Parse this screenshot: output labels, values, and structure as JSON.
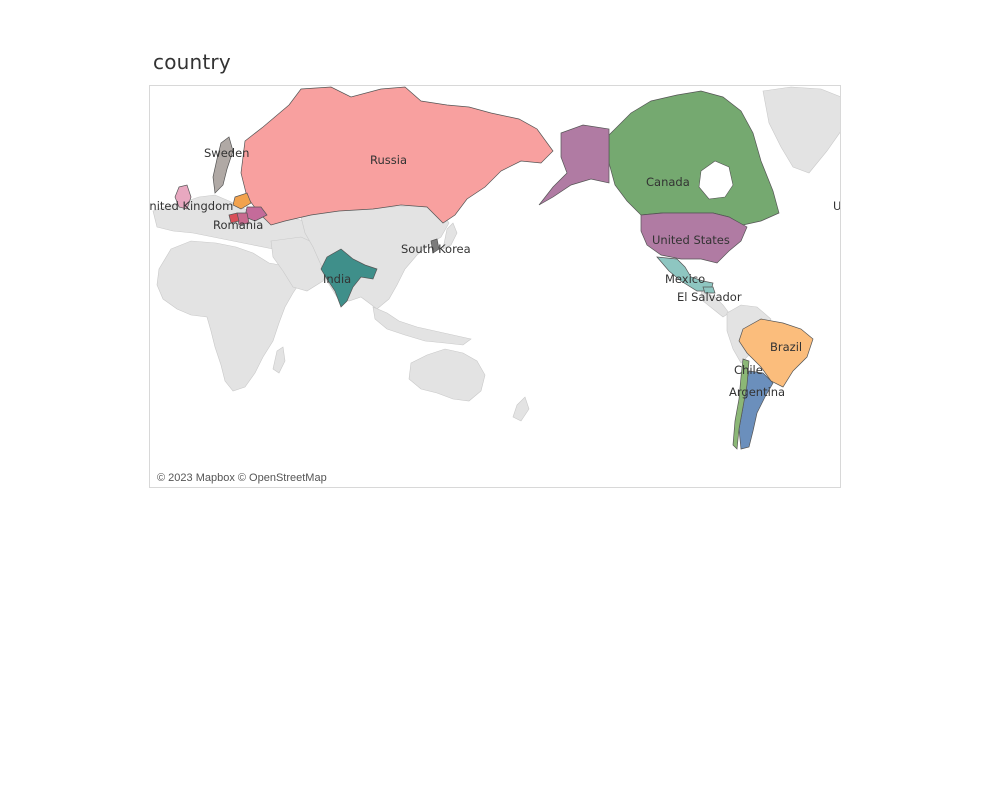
{
  "title": "country",
  "attribution": "© 2023 Mapbox © OpenStreetMap",
  "countries": [
    {
      "name": "Russia",
      "label": "Russia",
      "color": "#f8a09f"
    },
    {
      "name": "Canada",
      "label": "Canada",
      "color": "#75a970"
    },
    {
      "name": "United States",
      "label": "United States",
      "color": "#b07ba3"
    },
    {
      "name": "Mexico",
      "label": "Mexico",
      "color": "#8ec6c1"
    },
    {
      "name": "El Salvador",
      "label": "El Salvador",
      "color": "#8ec6c1"
    },
    {
      "name": "Brazil",
      "label": "Brazil",
      "color": "#fbbd7c"
    },
    {
      "name": "Chile",
      "label": "Chile",
      "color": "#8bb776"
    },
    {
      "name": "Argentina",
      "label": "Argentina",
      "color": "#6b8fbc"
    },
    {
      "name": "India",
      "label": "India",
      "color": "#3f8f8a"
    },
    {
      "name": "Sweden",
      "label": "Sweden",
      "color": "#b0a9a5"
    },
    {
      "name": "United Kingdom",
      "label": "United Kingdom",
      "color": "#e8a8c0"
    },
    {
      "name": "Romania",
      "label": "Romania",
      "color": "#c86a8e"
    },
    {
      "name": "South Korea",
      "label": "South Korea",
      "color": "#7c7c7c"
    }
  ],
  "edge_label": "U",
  "colors": {
    "land": "#e3e3e3",
    "land_border": "#c9c9c9",
    "country_border": "#555555",
    "ocean": "#ffffff",
    "poland": "#f2a24d",
    "ukraine": "#c46b9a",
    "hungary": "#d94f58"
  }
}
